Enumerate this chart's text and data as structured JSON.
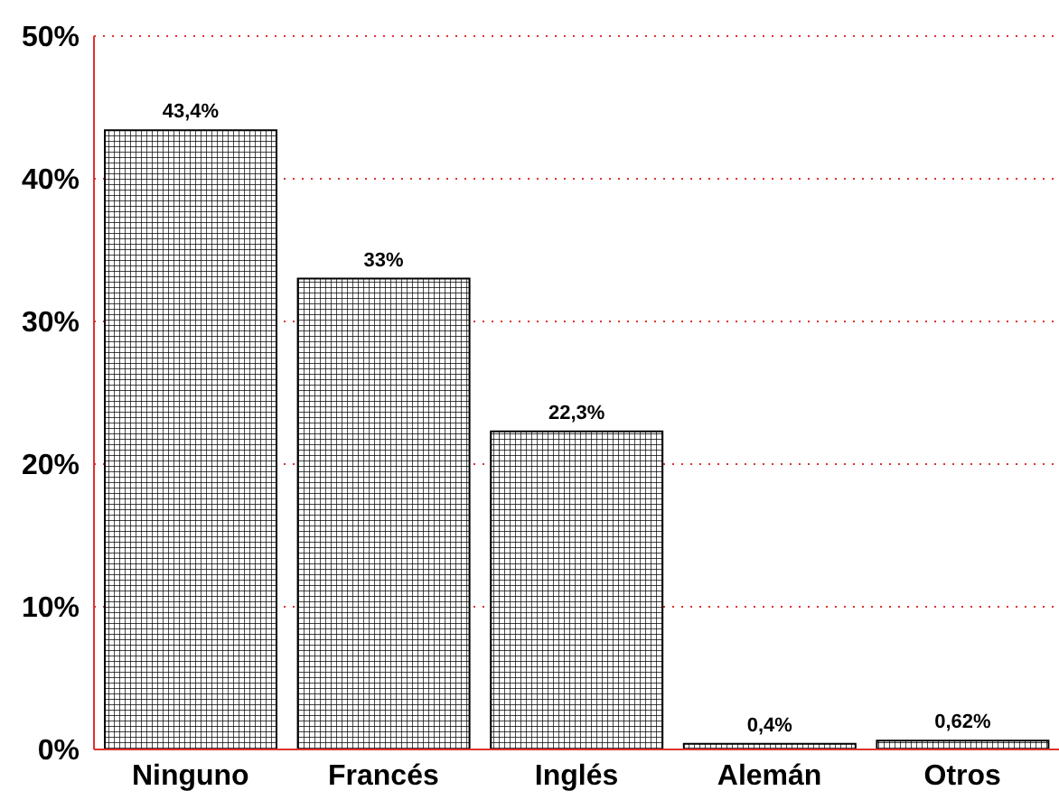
{
  "chart_data": {
    "type": "bar",
    "categories": [
      "Ninguno",
      "Francés",
      "Inglés",
      "Alemán",
      "Otros"
    ],
    "values": [
      43.4,
      33,
      22.3,
      0.4,
      0.62
    ],
    "color": "#000000",
    "value_labels": [
      "43,4%",
      "33%",
      "22,3%",
      "0,4%",
      "0,62%"
    ],
    "ylim": [
      0,
      50
    ],
    "yticks": [
      {
        "value": 0,
        "label": "0%"
      },
      {
        "value": 10,
        "label": "10%"
      },
      {
        "value": 20,
        "label": "20%"
      },
      {
        "value": 30,
        "label": "30%"
      },
      {
        "value": 40,
        "label": "40%"
      },
      {
        "value": 50,
        "label": "50%"
      }
    ],
    "grid": "y"
  }
}
